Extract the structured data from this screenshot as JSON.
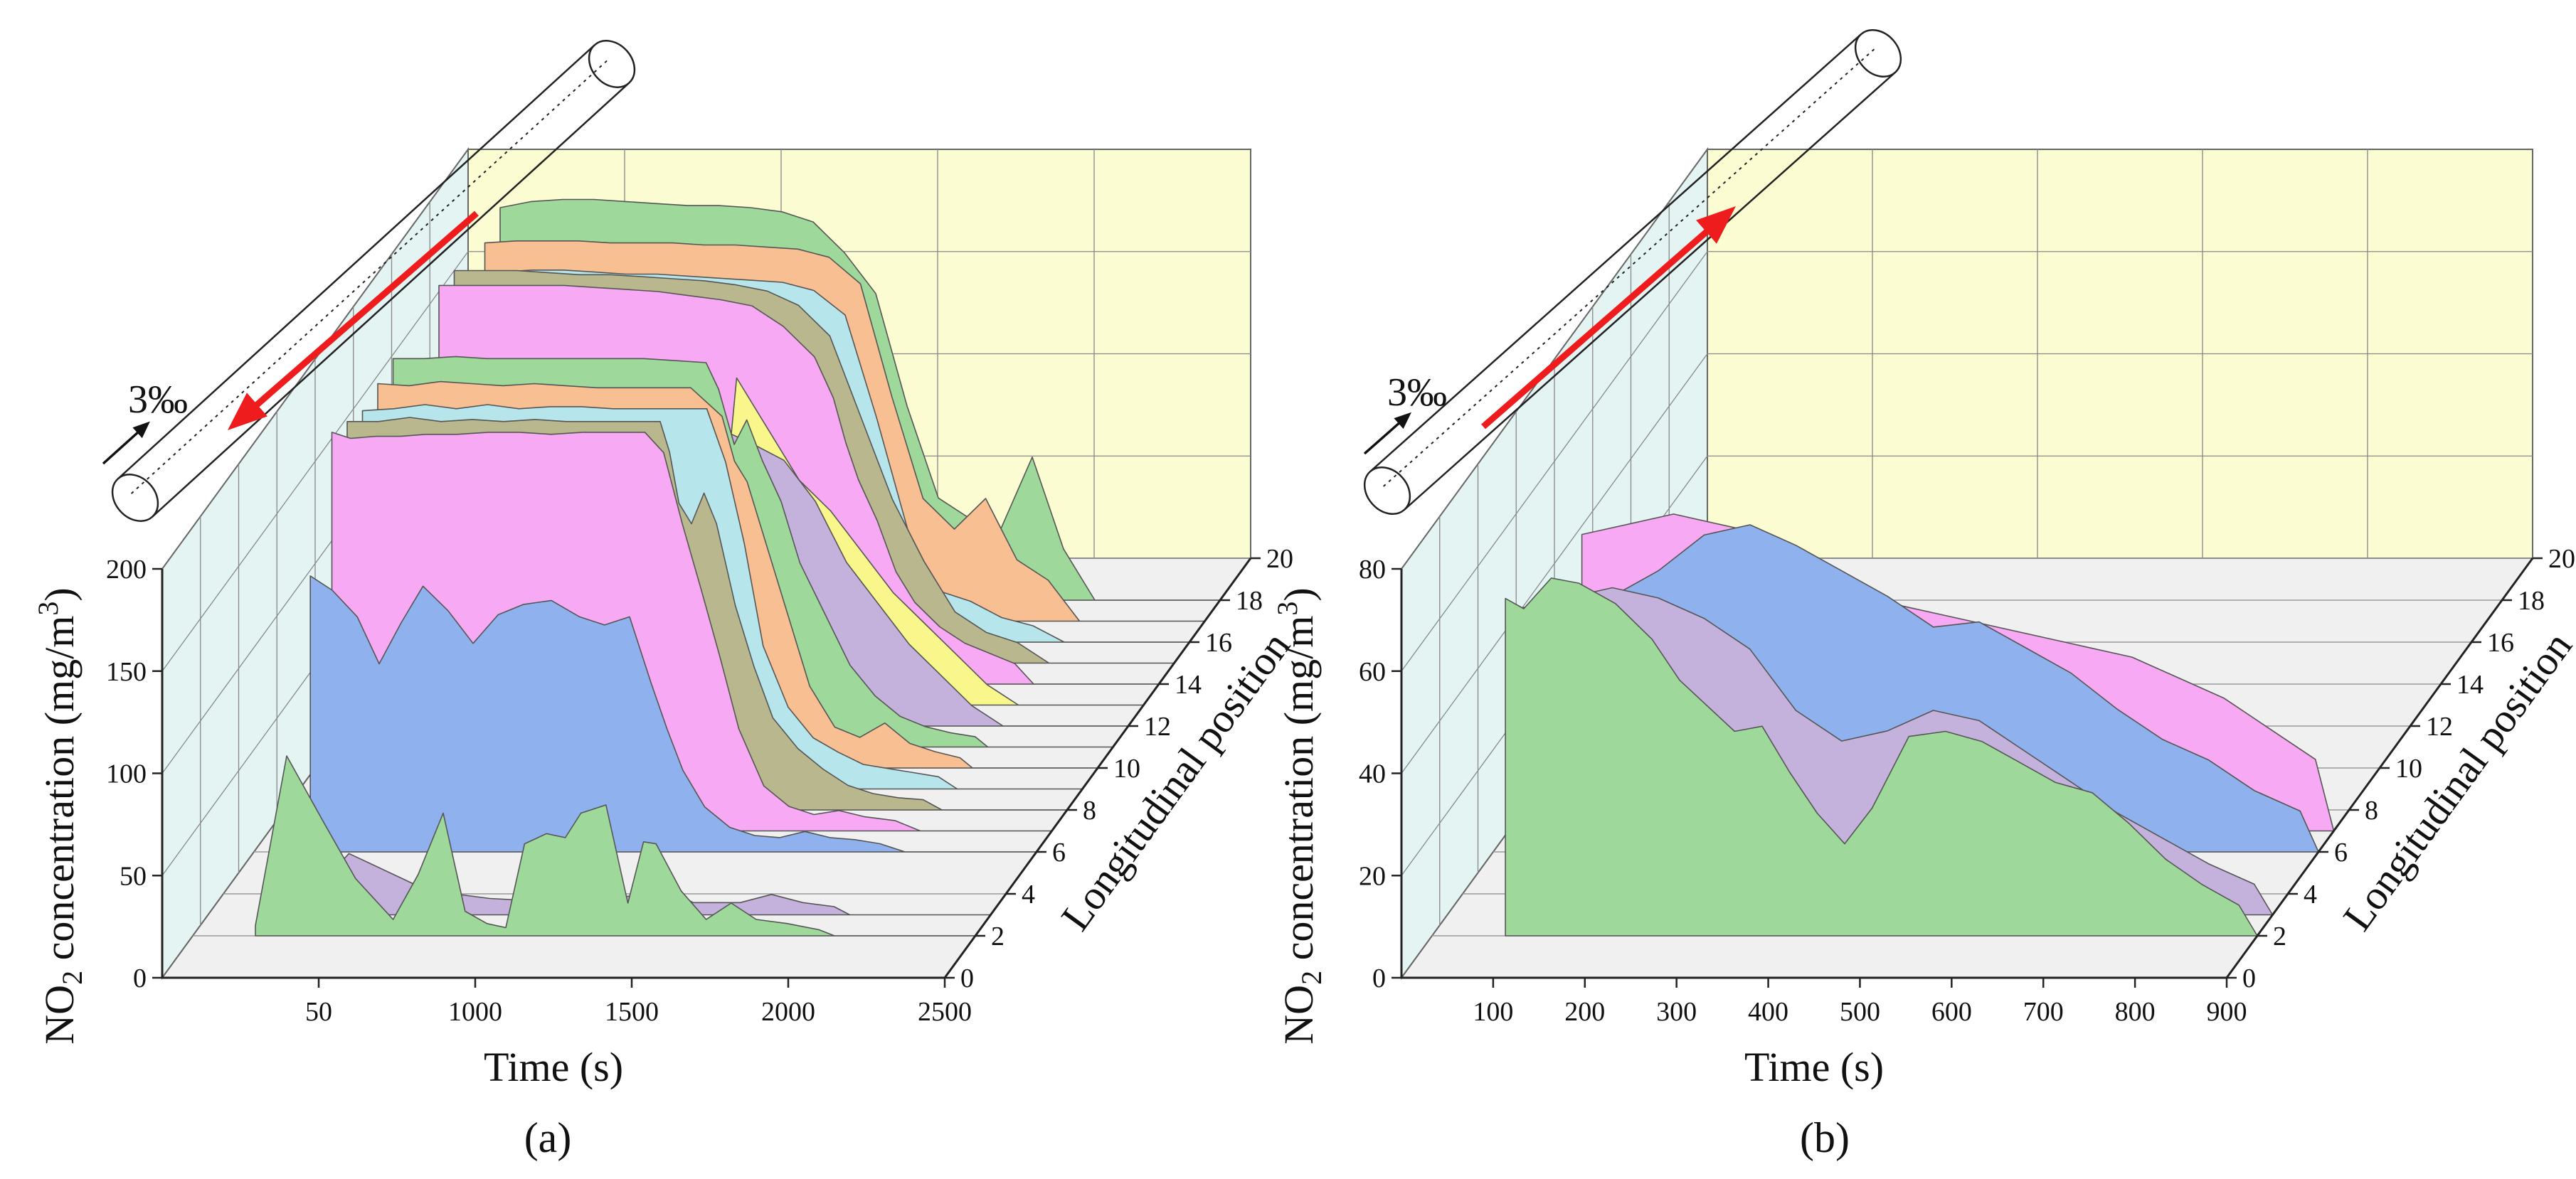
{
  "figure": {
    "panels": [
      {
        "id": "a",
        "caption": "(a)",
        "slope_label": "3‰",
        "flow_direction": "downhill"
      },
      {
        "id": "b",
        "caption": "(b)",
        "slope_label": "3‰",
        "flow_direction": "uphill"
      }
    ]
  },
  "colors": {
    "green": "#9ed99b",
    "purple": "#c4b2dc",
    "blue": "#8fb1ee",
    "pink": "#f7aaf3",
    "olive": "#b9b78e",
    "cyan": "#b6e5ec",
    "orange": "#f8bf92",
    "yellow": "#f9f78c",
    "back_wall": "#fcfcd2",
    "side_wall": "#e4f4f3",
    "floor": "#f0f0f0",
    "arrow": "#ee1c1c"
  },
  "chart_data": [
    {
      "type": "area",
      "panel": "a",
      "title": "",
      "ylabel_main": "NO",
      "ylabel_sub": "2",
      "ylabel_rest": " concentration (mg/m",
      "ylabel_sup": "3",
      "ylabel_end": ")",
      "xlabel": "Time (s)",
      "zlabel": "Longitudinal position",
      "y_ticks": [
        "0",
        "50",
        "100",
        "150",
        "200"
      ],
      "x_ticks": [
        "50",
        "1000",
        "1500",
        "2000",
        "2500"
      ],
      "z_ticks": [
        "0",
        "2",
        "4",
        "6",
        "8",
        "10",
        "12",
        "14",
        "16",
        "18",
        "20"
      ],
      "xlim": [
        0,
        2500
      ],
      "ylim": [
        0,
        200
      ],
      "zlim": [
        0,
        20
      ],
      "series": [
        {
          "name": "position 2",
          "z": 2,
          "color": "green",
          "x": [
            200,
            300,
            420,
            520,
            640,
            720,
            800,
            870,
            940,
            1000,
            1060,
            1130,
            1190,
            1240,
            1320,
            1390,
            1440,
            1480,
            1560,
            1640,
            1720,
            1800,
            1900,
            2000,
            2050
          ],
          "values": [
            5,
            88,
            55,
            28,
            8,
            30,
            60,
            12,
            6,
            4,
            45,
            50,
            48,
            60,
            64,
            16,
            46,
            45,
            22,
            8,
            16,
            8,
            6,
            3,
            0
          ]
        },
        {
          "name": "position 3",
          "z": 3,
          "color": "purple",
          "x": [
            200,
            330,
            450,
            700,
            900,
            1150,
            1400,
            1460,
            1500,
            1550,
            1700,
            1800,
            1900,
            2000,
            2050
          ],
          "values": [
            8,
            10,
            30,
            12,
            8,
            6,
            10,
            22,
            10,
            6,
            6,
            10,
            6,
            4,
            0
          ]
        },
        {
          "name": "position 6",
          "z": 6,
          "color": "blue",
          "x": [
            180,
            250,
            330,
            400,
            470,
            540,
            620,
            700,
            780,
            860,
            950,
            1040,
            1120,
            1200,
            1270,
            1320,
            1370,
            1440,
            1520,
            1600,
            1680,
            1760,
            1840,
            1920,
            2000,
            2080
          ],
          "values": [
            135,
            128,
            115,
            92,
            112,
            130,
            118,
            102,
            116,
            121,
            123,
            115,
            111,
            115,
            82,
            60,
            40,
            22,
            12,
            8,
            7,
            10,
            7,
            6,
            4,
            0
          ]
        },
        {
          "name": "position 7",
          "z": 7,
          "color": "pink",
          "x": [
            200,
            260,
            340,
            420,
            500,
            600,
            700,
            800,
            900,
            1000,
            1100,
            1200,
            1260,
            1320,
            1380,
            1440,
            1500,
            1580,
            1660,
            1740,
            1820,
            1900,
            2000,
            2080
          ],
          "values": [
            195,
            192,
            193,
            193,
            194,
            194,
            195,
            195,
            194,
            195,
            195,
            195,
            185,
            150,
            118,
            85,
            50,
            22,
            12,
            8,
            10,
            7,
            5,
            0
          ]
        },
        {
          "name": "position 8",
          "z": 8,
          "color": "olive",
          "x": [
            200,
            300,
            400,
            500,
            600,
            700,
            800,
            900,
            1000,
            1100,
            1200,
            1230,
            1260,
            1300,
            1340,
            1380,
            1440,
            1500,
            1560,
            1640,
            1720,
            1800,
            1880,
            1960,
            2040,
            2100
          ],
          "values": [
            190,
            190,
            192,
            190,
            191,
            190,
            191,
            190,
            190,
            190,
            190,
            175,
            150,
            140,
            155,
            140,
            100,
            70,
            45,
            30,
            20,
            12,
            8,
            6,
            5,
            0
          ]
        },
        {
          "name": "position 9",
          "z": 9,
          "color": "cyan",
          "x": [
            200,
            300,
            400,
            500,
            600,
            700,
            800,
            900,
            1000,
            1100,
            1200,
            1300,
            1360,
            1420,
            1480,
            1560,
            1640,
            1720,
            1800,
            1880,
            1960,
            2040,
            2100
          ],
          "values": [
            185,
            186,
            188,
            186,
            188,
            186,
            187,
            187,
            186,
            186,
            186,
            186,
            160,
            120,
            70,
            40,
            25,
            18,
            12,
            10,
            8,
            6,
            0
          ]
        },
        {
          "name": "position 10",
          "z": 10,
          "color": "orange",
          "x": [
            200,
            300,
            400,
            500,
            600,
            700,
            800,
            900,
            1000,
            1100,
            1200,
            1300,
            1340,
            1380,
            1440,
            1500,
            1580,
            1660,
            1740,
            1820,
            1900,
            1980,
            2060,
            2100
          ],
          "values": [
            188,
            187,
            189,
            188,
            187,
            188,
            187,
            186,
            186,
            186,
            186,
            172,
            150,
            140,
            110,
            80,
            40,
            20,
            15,
            22,
            12,
            8,
            5,
            0
          ]
        },
        {
          "name": "position 11",
          "z": 11,
          "color": "green",
          "x": [
            200,
            300,
            400,
            500,
            600,
            700,
            800,
            900,
            1000,
            1100,
            1200,
            1240,
            1290,
            1330,
            1380,
            1440,
            1500,
            1580,
            1660,
            1740,
            1820,
            1900,
            1980,
            2060,
            2100
          ],
          "values": [
            190,
            190,
            191,
            190,
            190,
            190,
            190,
            190,
            190,
            189,
            188,
            175,
            148,
            160,
            140,
            120,
            90,
            65,
            40,
            25,
            15,
            10,
            7,
            5,
            0
          ]
        },
        {
          "name": "position 12",
          "z": 12,
          "color": "purple",
          "x": [
            200,
            300,
            400,
            500,
            600,
            700,
            800,
            900,
            1000,
            1100,
            1200,
            1300,
            1400,
            1500,
            1600,
            1700,
            1800,
            1900,
            2000,
            2100
          ],
          "values": [
            170,
            168,
            166,
            165,
            163,
            160,
            158,
            155,
            152,
            148,
            145,
            138,
            130,
            110,
            80,
            60,
            40,
            25,
            10,
            0
          ]
        },
        {
          "name": "position 13",
          "z": 13,
          "color": "yellow",
          "x": [
            1100,
            1200,
            1300,
            1400,
            1500,
            1600,
            1700,
            1800,
            1900,
            2000,
            2100
          ],
          "values": [
            0,
            160,
            135,
            110,
            95,
            75,
            55,
            40,
            25,
            10,
            0
          ]
        },
        {
          "name": "position 14",
          "z": 14,
          "color": "pink",
          "x": [
            200,
            300,
            400,
            500,
            600,
            700,
            800,
            900,
            1000,
            1100,
            1200,
            1300,
            1400,
            1460,
            1500,
            1540,
            1600,
            1660,
            1720,
            1800,
            1880,
            1960,
            2040,
            2100
          ],
          "values": [
            195,
            195,
            195,
            195,
            195,
            194,
            193,
            192,
            190,
            188,
            185,
            175,
            160,
            140,
            118,
            100,
            80,
            55,
            40,
            28,
            20,
            15,
            10,
            0
          ]
        },
        {
          "name": "position 15",
          "z": 15,
          "color": "olive",
          "x": [
            200,
            300,
            400,
            500,
            600,
            700,
            800,
            900,
            1000,
            1100,
            1200,
            1300,
            1400,
            1500,
            1600,
            1700,
            1800,
            1900,
            2000,
            2100
          ],
          "values": [
            192,
            192,
            192,
            191,
            190,
            190,
            189,
            188,
            187,
            185,
            182,
            175,
            160,
            120,
            80,
            50,
            25,
            15,
            10,
            0
          ]
        },
        {
          "name": "position 16",
          "z": 16,
          "color": "cyan",
          "x": [
            200,
            300,
            400,
            500,
            600,
            700,
            800,
            900,
            1000,
            1100,
            1200,
            1300,
            1400,
            1500,
            1600,
            1700,
            1800,
            1900,
            2000,
            2100
          ],
          "values": [
            180,
            181,
            182,
            182,
            181,
            180,
            180,
            179,
            178,
            177,
            176,
            172,
            160,
            110,
            55,
            25,
            20,
            12,
            8,
            0
          ]
        },
        {
          "name": "position 17",
          "z": 17,
          "color": "orange",
          "x": [
            200,
            300,
            400,
            500,
            600,
            700,
            800,
            900,
            1000,
            1100,
            1200,
            1300,
            1400,
            1500,
            1600,
            1700,
            1800,
            1900,
            2000,
            2100
          ],
          "values": [
            185,
            186,
            186,
            186,
            185,
            185,
            185,
            184,
            184,
            183,
            182,
            178,
            165,
            110,
            60,
            45,
            60,
            30,
            20,
            0
          ]
        },
        {
          "name": "position 18",
          "z": 18,
          "color": "green",
          "x": [
            200,
            300,
            400,
            500,
            600,
            700,
            800,
            900,
            1000,
            1100,
            1200,
            1300,
            1400,
            1500,
            1600,
            1700,
            1800,
            1900,
            2000,
            2100
          ],
          "values": [
            192,
            195,
            196,
            196,
            195,
            194,
            193,
            193,
            192,
            190,
            185,
            170,
            150,
            95,
            50,
            40,
            35,
            70,
            25,
            0
          ]
        }
      ]
    },
    {
      "type": "area",
      "panel": "b",
      "title": "",
      "ylabel_main": "NO",
      "ylabel_sub": "2",
      "ylabel_rest": " concentration (mg/m",
      "ylabel_sup": "3",
      "ylabel_end": ")",
      "xlabel": "Time (s)",
      "zlabel": "Longitudinal position",
      "y_ticks": [
        "0",
        "20",
        "40",
        "60",
        "80"
      ],
      "x_ticks": [
        "100",
        "200",
        "300",
        "400",
        "500",
        "600",
        "700",
        "800",
        "900"
      ],
      "z_ticks": [
        "0",
        "2",
        "4",
        "6",
        "8",
        "10",
        "12",
        "14",
        "16",
        "18",
        "20"
      ],
      "xlim": [
        0,
        900
      ],
      "ylim": [
        0,
        80
      ],
      "zlim": [
        0,
        20
      ],
      "series": [
        {
          "name": "position 2",
          "z": 2,
          "color": "green",
          "x": [
            80,
            100,
            130,
            160,
            200,
            240,
            270,
            300,
            330,
            360,
            390,
            420,
            450,
            480,
            520,
            560,
            600,
            640,
            680,
            720,
            760,
            800,
            840,
            880,
            900
          ],
          "values": [
            66,
            64,
            70,
            69,
            65,
            58,
            50,
            45,
            40,
            41,
            32,
            24,
            18,
            25,
            39,
            40,
            38,
            34,
            30,
            28,
            22,
            15,
            10,
            6,
            0
          ]
        },
        {
          "name": "position 3",
          "z": 3,
          "color": "purple",
          "x": [
            80,
            130,
            180,
            230,
            280,
            330,
            380,
            430,
            480,
            530,
            580,
            630,
            680,
            730,
            780,
            830,
            880,
            900
          ],
          "values": [
            60,
            62,
            64,
            62,
            58,
            52,
            40,
            34,
            36,
            40,
            38,
            32,
            26,
            20,
            15,
            10,
            6,
            0
          ]
        },
        {
          "name": "position 6",
          "z": 6,
          "color": "blue",
          "x": [
            80,
            130,
            180,
            230,
            280,
            330,
            380,
            430,
            480,
            530,
            580,
            630,
            680,
            730,
            780,
            830,
            880,
            900
          ],
          "values": [
            40,
            50,
            55,
            62,
            64,
            60,
            55,
            50,
            44,
            45,
            40,
            35,
            28,
            22,
            18,
            12,
            8,
            0
          ]
        },
        {
          "name": "position 7",
          "z": 7,
          "color": "pink",
          "x": [
            80,
            130,
            180,
            230,
            280,
            330,
            380,
            430,
            480,
            530,
            580,
            630,
            680,
            730,
            780,
            830,
            880,
            900
          ],
          "values": [
            58,
            60,
            62,
            60,
            58,
            54,
            48,
            44,
            42,
            40,
            38,
            36,
            34,
            30,
            26,
            20,
            14,
            0
          ]
        }
      ]
    }
  ]
}
